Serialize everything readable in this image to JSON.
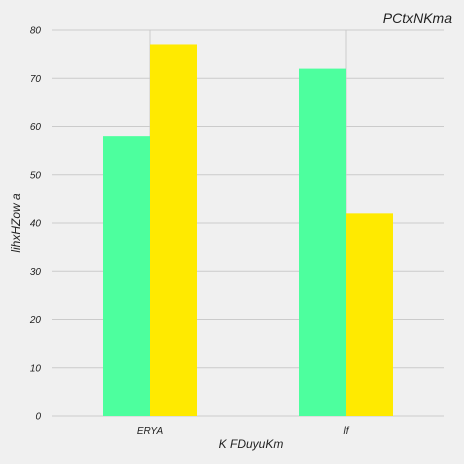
{
  "chart_data": {
    "type": "bar",
    "title": "PCtxNKma",
    "xlabel": "K FDuyuKm",
    "ylabel": "lihxHZow a",
    "categories": [
      "ERYA",
      "lf"
    ],
    "series": [
      {
        "values": [
          58,
          72
        ],
        "color": "#4dff9e"
      },
      {
        "values": [
          77,
          42
        ],
        "color": "#ffea00"
      }
    ],
    "ylim": [
      0,
      80
    ],
    "yticks": [
      0,
      10,
      20,
      30,
      40,
      50,
      60,
      70,
      80
    ],
    "grid": true,
    "background": "#f0f0f0",
    "grid_color": "#cbcbcb"
  }
}
